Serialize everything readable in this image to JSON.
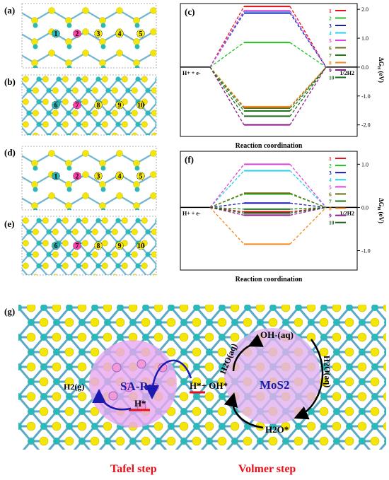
{
  "panels": {
    "a": {
      "label": "(a)",
      "site_labels": [
        "1",
        "2",
        "3",
        "4",
        "5"
      ]
    },
    "b": {
      "label": "(b)",
      "site_labels": [
        "6",
        "7",
        "8",
        "9",
        "10"
      ]
    },
    "d": {
      "label": "(d)",
      "site_labels": [
        "1",
        "2",
        "3",
        "4",
        "5"
      ]
    },
    "e": {
      "label": "(e)",
      "site_labels": [
        "6",
        "7",
        "8",
        "9",
        "10"
      ]
    },
    "g": {
      "label": "(g)"
    }
  },
  "colors": {
    "S": "#f5e60a",
    "Mo": "#2bb8b8",
    "Ru": "#ff3fb0",
    "accent_red": "#e8101a",
    "blue": "#1a1aa8"
  },
  "chart_data": [
    {
      "type": "line",
      "panel_label": "(c)",
      "xlabel": "Reaction coordination",
      "ylabel": "ΔG_H (eV)",
      "ylim": [
        -2.4,
        2.2
      ],
      "yticks": [
        "2.0",
        "1.0",
        "0.0",
        "-1.0",
        "-2.0"
      ],
      "left_state": "H+ + e-",
      "right_state": "1/2H2",
      "series": [
        {
          "name": "1",
          "color": "#e8101a",
          "value": 2.1
        },
        {
          "name": "2",
          "color": "#22c022",
          "value": 0.85
        },
        {
          "name": "3",
          "color": "#1a1ab0",
          "value": 1.87
        },
        {
          "name": "4",
          "color": "#22d3e8",
          "value": 1.93
        },
        {
          "name": "5",
          "color": "#e040e0",
          "value": 1.95
        },
        {
          "name": "6",
          "color": "#6b6b14",
          "value": -1.42
        },
        {
          "name": "7",
          "color": "#1a7a1a",
          "value": -1.52
        },
        {
          "name": "8",
          "color": "#f08a1e",
          "value": -1.37
        },
        {
          "name": "9",
          "color": "#8a1a8a",
          "value": -2.0
        },
        {
          "name": "10",
          "color": "#1a6a1a",
          "value": -1.7
        }
      ]
    },
    {
      "type": "line",
      "panel_label": "(f)",
      "xlabel": "Reaction coordination",
      "ylabel": "ΔG_H (eV)",
      "ylim": [
        -1.45,
        1.3
      ],
      "yticks": [
        "1.0",
        "0.0",
        "-1.0"
      ],
      "left_state": "H+ + e-",
      "right_state": "1/2H2",
      "series": [
        {
          "name": "1",
          "color": "#e8101a",
          "value": -0.1
        },
        {
          "name": "2",
          "color": "#22c022",
          "value": 0.31
        },
        {
          "name": "3",
          "color": "#1a1ab0",
          "value": 0.1
        },
        {
          "name": "4",
          "color": "#22d3e8",
          "value": 0.85
        },
        {
          "name": "5",
          "color": "#e040e0",
          "value": 1.0
        },
        {
          "name": "6",
          "color": "#6b6b14",
          "value": 0.33
        },
        {
          "name": "7",
          "color": "#1a7a1a",
          "value": -0.04
        },
        {
          "name": "8",
          "color": "#f08a1e",
          "value": -0.85
        },
        {
          "name": "9",
          "color": "#8a1a8a",
          "value": -0.18
        },
        {
          "name": "10",
          "color": "#1a5a1a",
          "value": -0.13
        }
      ]
    }
  ],
  "scheme": {
    "sa_ru": "SA-Ru",
    "mos2": "MoS2",
    "h2g": "H2(g)",
    "h_star_left": "H*",
    "h_star_mid": "H*+ OH*",
    "oh_aq": "OH-(aq)",
    "h2o_aq_left": "H2O(aq)",
    "h2o_aq_right": "H2O(aq)",
    "h2o_star": "H2O*",
    "tafel": "Tafel step",
    "volmer": "Volmer step"
  }
}
